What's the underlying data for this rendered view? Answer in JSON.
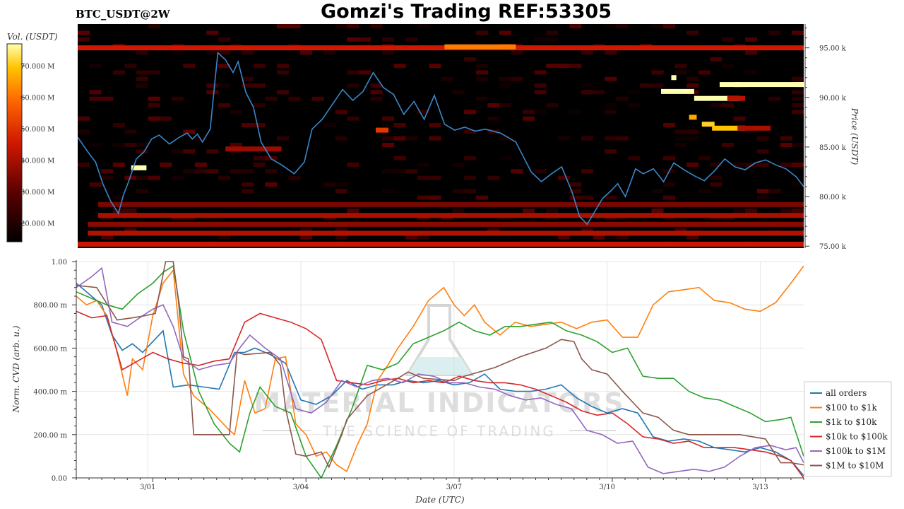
{
  "header": {
    "symbol": "BTC_USDT@2W",
    "title": "Gomzi's Trading REF:53305"
  },
  "colors": {
    "heatmap_background": "#000000",
    "price_line": "#3a86c8",
    "legend_border": "#cccccc"
  },
  "watermark": {
    "brand": "MATERIAL INDICATORS",
    "tagline": "THE SCIENCE OF TRADING",
    "icon": "flask-icon"
  },
  "chart_data": [
    {
      "type": "heatmap",
      "title": "Gomzi's Trading REF:53305",
      "subtitle": "BTC_USDT@2W",
      "xlabel": "",
      "ylabel": "Price (USDT)",
      "colorbar": {
        "label": "Vol. (USDT)",
        "ticks": [
          "20.000 M",
          "30.000 M",
          "40.000 M",
          "50.000 M",
          "60.000 M",
          "70.000 M"
        ],
        "tick_values": [
          20,
          30,
          40,
          50,
          60,
          70
        ],
        "range": [
          14,
          77
        ]
      },
      "ylim": [
        74800,
        97400
      ],
      "y_ticks": [
        75000,
        80000,
        85000,
        90000,
        95000
      ],
      "y_tick_labels": [
        "75.00 k",
        "80.00 k",
        "85.00 k",
        "90.00 k",
        "95.00 k"
      ],
      "xlim": [
        0,
        14.25
      ],
      "price_series": {
        "name": "",
        "x": [
          0,
          0.2,
          0.35,
          0.5,
          0.65,
          0.8,
          0.9,
          1.0,
          1.15,
          1.3,
          1.45,
          1.6,
          1.8,
          2.0,
          2.15,
          2.25,
          2.35,
          2.45,
          2.6,
          2.75,
          2.9,
          3.05,
          3.15,
          3.3,
          3.45,
          3.6,
          3.8,
          4.0,
          4.25,
          4.45,
          4.6,
          4.8,
          5.0,
          5.2,
          5.4,
          5.6,
          5.8,
          6.0,
          6.2,
          6.4,
          6.6,
          6.8,
          7.0,
          7.2,
          7.4,
          7.6,
          7.8,
          8.0,
          8.3,
          8.6,
          8.9,
          9.1,
          9.3,
          9.5,
          9.7,
          9.85,
          10.0,
          10.15,
          10.3,
          10.45,
          10.6,
          10.75,
          10.95,
          11.1,
          11.3,
          11.5,
          11.7,
          11.9,
          12.1,
          12.3,
          12.5,
          12.7,
          12.9,
          13.1,
          13.3,
          13.5,
          13.7,
          13.9,
          14.1,
          14.25
        ],
        "y": [
          86000,
          84500,
          83500,
          81200,
          79500,
          78300,
          80200,
          81500,
          83800,
          84500,
          85800,
          86200,
          85300,
          86000,
          86400,
          85800,
          86300,
          85500,
          86800,
          94500,
          93800,
          92500,
          93600,
          90500,
          89000,
          85500,
          83800,
          83200,
          82300,
          83500,
          86800,
          87800,
          89300,
          90800,
          89700,
          90600,
          92500,
          91000,
          90300,
          88300,
          89600,
          87800,
          90200,
          87300,
          86700,
          87000,
          86600,
          86800,
          86400,
          85500,
          82500,
          81500,
          82300,
          83000,
          80500,
          78000,
          77200,
          78500,
          79800,
          80500,
          81300,
          80000,
          82800,
          82300,
          82800,
          81500,
          83400,
          82700,
          82100,
          81600,
          82600,
          83800,
          83000,
          82700,
          83400,
          83700,
          83200,
          82800,
          82000,
          81000
        ]
      },
      "liquidity_bands": [
        {
          "price": 95000,
          "x_start": 0,
          "x_end": 14.25,
          "volume": 45
        },
        {
          "price": 95100,
          "x_start": 7.2,
          "x_end": 8.6,
          "volume": 60
        },
        {
          "price": 92000,
          "x_start": 11.65,
          "x_end": 11.75,
          "volume": 77
        },
        {
          "price": 91300,
          "x_start": 12.6,
          "x_end": 13.0,
          "volume": 77
        },
        {
          "price": 91300,
          "x_start": 12.9,
          "x_end": 14.25,
          "volume": 77
        },
        {
          "price": 91300,
          "x_start": 14.1,
          "x_end": 14.25,
          "volume": 77
        },
        {
          "price": 90600,
          "x_start": 11.45,
          "x_end": 12.1,
          "volume": 77
        },
        {
          "price": 89900,
          "x_start": 12.1,
          "x_end": 13.0,
          "volume": 77
        },
        {
          "price": 89900,
          "x_start": 12.75,
          "x_end": 13.1,
          "volume": 42
        },
        {
          "price": 88000,
          "x_start": 12.0,
          "x_end": 12.15,
          "volume": 65
        },
        {
          "price": 87300,
          "x_start": 12.25,
          "x_end": 12.5,
          "volume": 70
        },
        {
          "price": 86900,
          "x_start": 12.45,
          "x_end": 13.1,
          "volume": 68
        },
        {
          "price": 86900,
          "x_start": 12.95,
          "x_end": 13.6,
          "volume": 40
        },
        {
          "price": 86700,
          "x_start": 5.85,
          "x_end": 6.1,
          "volume": 50
        },
        {
          "price": 84800,
          "x_start": 2.9,
          "x_end": 4.0,
          "volume": 38
        },
        {
          "price": 82900,
          "x_start": 1.05,
          "x_end": 1.35,
          "volume": 77
        },
        {
          "price": 79200,
          "x_start": 0.4,
          "x_end": 14.25,
          "volume": 34
        },
        {
          "price": 78100,
          "x_start": 0.4,
          "x_end": 14.25,
          "volume": 40
        },
        {
          "price": 77200,
          "x_start": 0.2,
          "x_end": 14.25,
          "volume": 36
        },
        {
          "price": 76300,
          "x_start": 0.2,
          "x_end": 14.25,
          "volume": 41
        },
        {
          "price": 75200,
          "x_start": 0.0,
          "x_end": 14.25,
          "volume": 44
        }
      ]
    },
    {
      "type": "line",
      "xlabel": "Date (UTC)",
      "ylabel": "Norm. CVD (arb. u.)",
      "ylim": [
        0,
        1
      ],
      "y_ticks": [
        0,
        0.2,
        0.4,
        0.6,
        0.8,
        1.0
      ],
      "y_tick_labels": [
        "0.00",
        "200.00 m",
        "400.00 m",
        "600.00 m",
        "800.00 m",
        "1.00"
      ],
      "xlim": [
        0,
        14.25
      ],
      "x_ticks": [
        1.4,
        4.4,
        7.4,
        10.4,
        13.4
      ],
      "x_tick_labels": [
        "3/01",
        "3/04",
        "3/07",
        "3/10",
        "3/13"
      ],
      "grid": true,
      "legend": "right",
      "series": [
        {
          "name": "all orders",
          "color": "#1f77b4",
          "x": [
            0,
            0.3,
            0.5,
            0.7,
            0.9,
            1.1,
            1.3,
            1.5,
            1.7,
            1.9,
            2.2,
            2.5,
            2.8,
            3.1,
            3.3,
            3.5,
            3.8,
            4.1,
            4.4,
            4.7,
            5.0,
            5.3,
            5.6,
            5.9,
            6.2,
            6.5,
            6.8,
            7.1,
            7.4,
            7.7,
            8.0,
            8.3,
            8.6,
            8.9,
            9.2,
            9.5,
            9.8,
            10.1,
            10.4,
            10.7,
            11.0,
            11.3,
            11.6,
            11.9,
            12.2,
            12.5,
            12.8,
            13.1,
            13.4,
            13.7,
            14.0,
            14.25
          ],
          "y": [
            0.9,
            0.84,
            0.8,
            0.66,
            0.59,
            0.62,
            0.58,
            0.63,
            0.68,
            0.42,
            0.43,
            0.42,
            0.41,
            0.58,
            0.58,
            0.6,
            0.57,
            0.53,
            0.36,
            0.34,
            0.38,
            0.45,
            0.41,
            0.43,
            0.43,
            0.45,
            0.44,
            0.45,
            0.43,
            0.44,
            0.48,
            0.41,
            0.4,
            0.4,
            0.41,
            0.43,
            0.37,
            0.33,
            0.3,
            0.32,
            0.3,
            0.19,
            0.17,
            0.18,
            0.17,
            0.14,
            0.13,
            0.12,
            0.14,
            0.12,
            0.08,
            0.01
          ]
        },
        {
          "name": "$100 to $1k",
          "color": "#ff7f0e",
          "x": [
            0,
            0.2,
            0.4,
            0.6,
            0.8,
            1.0,
            1.1,
            1.3,
            1.5,
            1.7,
            1.9,
            2.1,
            2.3,
            2.6,
            2.8,
            3.0,
            3.1,
            3.3,
            3.5,
            3.7,
            3.9,
            4.1,
            4.3,
            4.5,
            4.7,
            4.9,
            5.1,
            5.3,
            5.5,
            5.7,
            5.9,
            6.1,
            6.3,
            6.6,
            6.9,
            7.2,
            7.4,
            7.6,
            7.8,
            8.0,
            8.3,
            8.6,
            8.9,
            9.2,
            9.5,
            9.8,
            10.1,
            10.4,
            10.7,
            11.0,
            11.3,
            11.6,
            11.9,
            12.2,
            12.5,
            12.8,
            13.1,
            13.4,
            13.7,
            14.0,
            14.25
          ],
          "y": [
            0.84,
            0.8,
            0.82,
            0.75,
            0.58,
            0.38,
            0.55,
            0.5,
            0.75,
            0.9,
            0.96,
            0.48,
            0.38,
            0.32,
            0.27,
            0.22,
            0.2,
            0.45,
            0.3,
            0.32,
            0.55,
            0.56,
            0.25,
            0.2,
            0.1,
            0.12,
            0.06,
            0.03,
            0.15,
            0.25,
            0.45,
            0.52,
            0.6,
            0.7,
            0.82,
            0.88,
            0.8,
            0.75,
            0.8,
            0.72,
            0.66,
            0.72,
            0.7,
            0.71,
            0.72,
            0.69,
            0.72,
            0.73,
            0.65,
            0.65,
            0.8,
            0.86,
            0.87,
            0.88,
            0.82,
            0.81,
            0.78,
            0.77,
            0.81,
            0.9,
            0.98
          ]
        },
        {
          "name": "$1k to $10k",
          "color": "#2ca02c",
          "x": [
            0,
            0.3,
            0.6,
            0.9,
            1.2,
            1.5,
            1.7,
            1.9,
            2.1,
            2.4,
            2.7,
            3.0,
            3.2,
            3.4,
            3.6,
            3.9,
            4.2,
            4.5,
            4.8,
            5.1,
            5.4,
            5.7,
            6.0,
            6.3,
            6.6,
            6.9,
            7.2,
            7.5,
            7.8,
            8.1,
            8.4,
            8.7,
            9.0,
            9.3,
            9.6,
            9.9,
            10.2,
            10.5,
            10.8,
            11.1,
            11.4,
            11.7,
            12.0,
            12.3,
            12.6,
            12.9,
            13.2,
            13.5,
            13.8,
            14.0,
            14.25
          ],
          "y": [
            0.86,
            0.83,
            0.8,
            0.78,
            0.85,
            0.9,
            0.95,
            0.98,
            0.68,
            0.4,
            0.25,
            0.16,
            0.12,
            0.3,
            0.42,
            0.33,
            0.3,
            0.1,
            0.0,
            0.15,
            0.32,
            0.52,
            0.5,
            0.53,
            0.62,
            0.65,
            0.68,
            0.72,
            0.68,
            0.66,
            0.7,
            0.7,
            0.71,
            0.72,
            0.68,
            0.66,
            0.63,
            0.58,
            0.6,
            0.47,
            0.46,
            0.46,
            0.4,
            0.37,
            0.36,
            0.33,
            0.3,
            0.26,
            0.27,
            0.28,
            0.1
          ]
        },
        {
          "name": "$10k to $100k",
          "color": "#d62728",
          "x": [
            0,
            0.3,
            0.6,
            0.9,
            1.2,
            1.5,
            1.8,
            2.1,
            2.4,
            2.7,
            3.0,
            3.3,
            3.6,
            3.9,
            4.2,
            4.5,
            4.8,
            5.1,
            5.4,
            5.7,
            6.0,
            6.3,
            6.6,
            6.9,
            7.2,
            7.5,
            7.8,
            8.1,
            8.4,
            8.7,
            9.0,
            9.3,
            9.6,
            9.9,
            10.2,
            10.5,
            10.8,
            11.1,
            11.4,
            11.7,
            12.0,
            12.3,
            12.6,
            12.9,
            13.2,
            13.5,
            13.8,
            14.0,
            14.25
          ],
          "y": [
            0.77,
            0.74,
            0.75,
            0.5,
            0.54,
            0.58,
            0.55,
            0.53,
            0.52,
            0.54,
            0.55,
            0.72,
            0.76,
            0.74,
            0.72,
            0.69,
            0.64,
            0.45,
            0.44,
            0.43,
            0.45,
            0.46,
            0.44,
            0.45,
            0.44,
            0.47,
            0.45,
            0.44,
            0.44,
            0.43,
            0.41,
            0.38,
            0.35,
            0.31,
            0.29,
            0.3,
            0.25,
            0.19,
            0.18,
            0.16,
            0.17,
            0.14,
            0.14,
            0.14,
            0.13,
            0.12,
            0.1,
            0.08,
            0.0
          ]
        },
        {
          "name": "$100k to $1M",
          "color": "#9467bd",
          "x": [
            0,
            0.3,
            0.5,
            0.7,
            1.0,
            1.3,
            1.5,
            1.7,
            1.9,
            2.1,
            2.4,
            2.7,
            3.0,
            3.2,
            3.4,
            3.7,
            4.0,
            4.3,
            4.6,
            4.9,
            5.2,
            5.5,
            5.8,
            6.1,
            6.4,
            6.7,
            7.0,
            7.3,
            7.6,
            7.9,
            8.2,
            8.5,
            8.8,
            9.1,
            9.4,
            9.7,
            10.0,
            10.3,
            10.6,
            10.9,
            11.2,
            11.5,
            11.8,
            12.1,
            12.4,
            12.7,
            13.0,
            13.3,
            13.6,
            13.9,
            14.1,
            14.25
          ],
          "y": [
            0.88,
            0.93,
            0.97,
            0.72,
            0.7,
            0.75,
            0.78,
            0.8,
            0.7,
            0.55,
            0.5,
            0.52,
            0.53,
            0.6,
            0.66,
            0.6,
            0.55,
            0.32,
            0.3,
            0.35,
            0.45,
            0.42,
            0.45,
            0.46,
            0.44,
            0.48,
            0.47,
            0.44,
            0.44,
            0.42,
            0.41,
            0.38,
            0.36,
            0.37,
            0.34,
            0.32,
            0.22,
            0.2,
            0.16,
            0.17,
            0.05,
            0.02,
            0.03,
            0.04,
            0.03,
            0.05,
            0.1,
            0.14,
            0.15,
            0.13,
            0.14,
            0.07
          ]
        },
        {
          "name": "$1M to $10M",
          "color": "#8c564b",
          "x": [
            0,
            0.4,
            0.8,
            1.1,
            1.35,
            1.55,
            1.75,
            1.9,
            2.0,
            2.1,
            2.2,
            2.3,
            3.0,
            3.15,
            3.3,
            3.8,
            4.0,
            4.1,
            4.3,
            4.5,
            4.8,
            4.95,
            5.2,
            5.3,
            5.7,
            6.3,
            6.5,
            6.8,
            7.4,
            7.6,
            8.2,
            8.7,
            9.2,
            9.5,
            9.75,
            9.9,
            10.1,
            10.4,
            10.7,
            11.1,
            11.4,
            11.7,
            12.0,
            12.4,
            12.7,
            13.0,
            13.5,
            13.8,
            14.0,
            14.25
          ],
          "y": [
            0.89,
            0.88,
            0.73,
            0.74,
            0.75,
            0.76,
            1.0,
            1.0,
            0.82,
            0.56,
            0.55,
            0.2,
            0.2,
            0.58,
            0.57,
            0.58,
            0.52,
            0.32,
            0.11,
            0.1,
            0.12,
            0.05,
            0.2,
            0.27,
            0.38,
            0.46,
            0.49,
            0.46,
            0.45,
            0.47,
            0.51,
            0.56,
            0.6,
            0.64,
            0.63,
            0.55,
            0.5,
            0.48,
            0.4,
            0.3,
            0.28,
            0.22,
            0.2,
            0.2,
            0.2,
            0.2,
            0.18,
            0.07,
            0.07,
            0.06
          ]
        }
      ]
    }
  ]
}
